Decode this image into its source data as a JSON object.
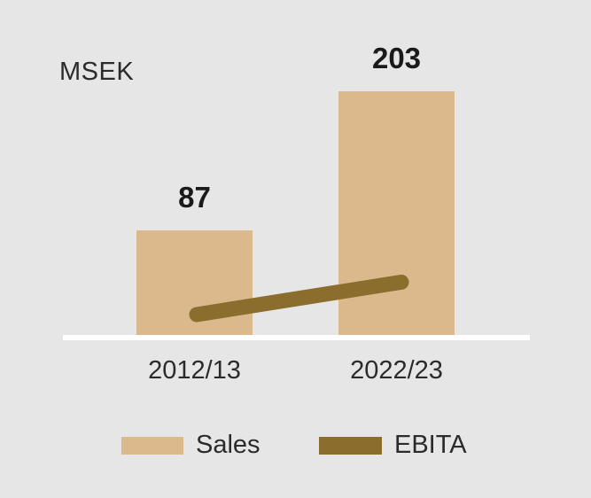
{
  "colors": {
    "background": "#E6E6E6",
    "sales_bar": "#DBB98D",
    "ebita_line": "#8B6E2D",
    "axis_line": "#FFFFFF",
    "text": "#2B2B2B",
    "value_text": "#1A1A1A"
  },
  "chart_data": {
    "type": "bar",
    "subtype": "bar-with-line-overlay",
    "title": "",
    "unit_label": "MSEK",
    "categories": [
      "2012/13",
      "2022/23"
    ],
    "series": [
      {
        "name": "Sales",
        "type": "bar",
        "color": "#DBB98D",
        "values": [
          87,
          203
        ],
        "data_labels_visible": true
      },
      {
        "name": "EBITA",
        "type": "line",
        "color": "#8B6E2D",
        "values_estimated": [
          17,
          44
        ],
        "data_labels_visible": false,
        "note": "EBITA values are not labeled in the chart; estimated from line pixel positions"
      }
    ],
    "xlabel": "",
    "ylabel": "",
    "ylim": [
      0,
      215
    ],
    "grid": false,
    "y_axis_visible": false,
    "legend_position": "bottom"
  },
  "legend": {
    "sales_label": "Sales",
    "ebita_label": "EBITA"
  }
}
